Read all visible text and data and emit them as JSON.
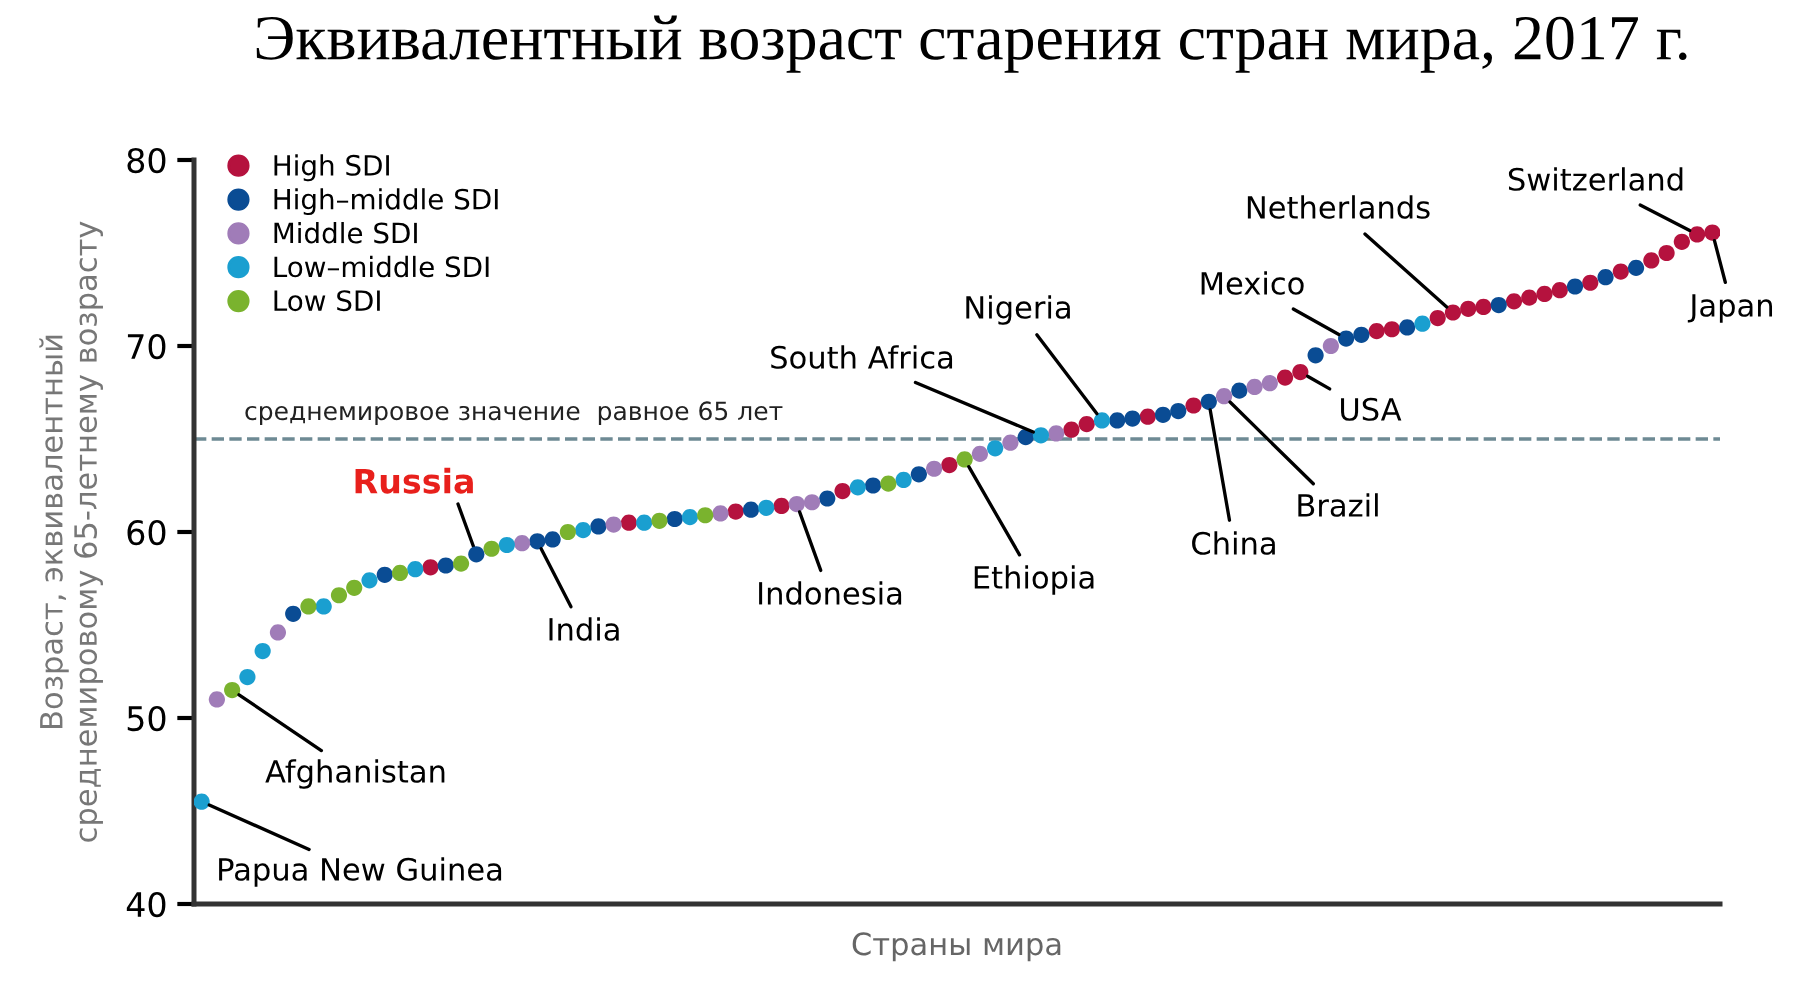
{
  "chart_data": {
    "type": "scatter",
    "title": "Эквивалентный возраст старения стран мира, 2017 г.",
    "xlabel": "Страны мира",
    "ylabel": "Возраст, эквивалентный\nсреднемировому 65-летнему возрасту",
    "categories": [
      null,
      null,
      null,
      null,
      null,
      null,
      null,
      null,
      null,
      null,
      null,
      null,
      null,
      null,
      null,
      null,
      null,
      null,
      null,
      null,
      null,
      null,
      null,
      null,
      null,
      null,
      null,
      null,
      null,
      null,
      null,
      null,
      null,
      null,
      null,
      null,
      null,
      null,
      null,
      null,
      null,
      null,
      null,
      null,
      null,
      null,
      null,
      null,
      null,
      null,
      null,
      null,
      null,
      null,
      null,
      null,
      null,
      null,
      null,
      null,
      null,
      null,
      null,
      null,
      null,
      null,
      null,
      null,
      null,
      null,
      null,
      null,
      null,
      null,
      null,
      null,
      null,
      null,
      null,
      null,
      null,
      null,
      null,
      null,
      null,
      null,
      null,
      null,
      null,
      null,
      null,
      null,
      null,
      null,
      null,
      null,
      null,
      null,
      null,
      null
    ],
    "series": [
      {
        "name": "High SDI",
        "color": "#b5123e",
        "values": [
          null,
          null,
          null,
          null,
          null,
          null,
          null,
          null,
          null,
          null,
          null,
          null,
          null,
          null,
          null,
          58.1,
          null,
          null,
          null,
          null,
          null,
          null,
          null,
          null,
          null,
          null,
          null,
          null,
          60.5,
          null,
          null,
          null,
          null,
          null,
          null,
          61.1,
          null,
          null,
          61.4,
          null,
          null,
          null,
          62.2,
          null,
          null,
          null,
          null,
          null,
          null,
          63.6,
          null,
          null,
          null,
          null,
          null,
          null,
          null,
          65.5,
          65.8,
          null,
          null,
          null,
          66.2,
          null,
          null,
          66.8,
          null,
          null,
          null,
          null,
          null,
          68.3,
          68.6,
          null,
          null,
          null,
          null,
          70.8,
          70.9,
          null,
          null,
          71.5,
          71.8,
          72.0,
          72.1,
          null,
          72.4,
          72.6,
          72.8,
          73.0,
          null,
          73.4,
          null,
          74.0,
          null,
          74.6,
          75.0,
          75.6,
          76.0,
          76.1
        ]
      },
      {
        "name": "High–middle SDI",
        "color": "#0a4c94",
        "values": [
          null,
          null,
          null,
          null,
          null,
          null,
          55.6,
          null,
          null,
          null,
          null,
          null,
          57.7,
          null,
          null,
          null,
          58.2,
          null,
          58.8,
          null,
          null,
          null,
          59.5,
          59.6,
          null,
          null,
          60.3,
          null,
          null,
          null,
          null,
          60.7,
          null,
          null,
          null,
          null,
          61.2,
          null,
          null,
          null,
          null,
          61.8,
          null,
          null,
          62.5,
          null,
          null,
          63.1,
          null,
          null,
          null,
          null,
          null,
          null,
          65.1,
          null,
          null,
          null,
          null,
          null,
          66.0,
          66.1,
          null,
          66.3,
          66.5,
          null,
          67.0,
          null,
          67.6,
          null,
          null,
          null,
          null,
          69.5,
          null,
          70.4,
          70.6,
          null,
          null,
          71.0,
          null,
          null,
          null,
          null,
          null,
          72.2,
          null,
          null,
          null,
          null,
          73.2,
          null,
          73.7,
          null,
          74.2,
          null,
          null,
          null,
          null,
          null
        ]
      },
      {
        "name": "Middle SDI",
        "color": "#a07cb8",
        "values": [
          null,
          51.0,
          null,
          null,
          null,
          54.6,
          null,
          null,
          null,
          null,
          null,
          null,
          null,
          null,
          null,
          null,
          null,
          null,
          null,
          null,
          null,
          59.4,
          null,
          null,
          null,
          null,
          null,
          60.4,
          null,
          null,
          null,
          null,
          null,
          null,
          61.0,
          null,
          null,
          null,
          null,
          61.5,
          61.6,
          null,
          null,
          null,
          null,
          null,
          null,
          null,
          63.4,
          null,
          null,
          64.2,
          null,
          64.8,
          null,
          null,
          65.3,
          null,
          null,
          null,
          null,
          null,
          null,
          null,
          null,
          null,
          null,
          67.3,
          null,
          67.8,
          68.0,
          null,
          null,
          null,
          70.0,
          null,
          null,
          null,
          null,
          null,
          null,
          null,
          null,
          null,
          null,
          null,
          null,
          null,
          null,
          null,
          null,
          null,
          null,
          null,
          null,
          null,
          null,
          null,
          null,
          null
        ]
      },
      {
        "name": "Low–middle SDI",
        "color": "#1a9fd0",
        "values": [
          45.5,
          null,
          null,
          52.2,
          53.6,
          null,
          null,
          null,
          56.0,
          null,
          null,
          57.4,
          null,
          null,
          58.0,
          null,
          null,
          null,
          null,
          null,
          59.3,
          null,
          null,
          null,
          null,
          60.1,
          null,
          null,
          null,
          60.5,
          null,
          null,
          60.8,
          null,
          null,
          null,
          null,
          61.3,
          null,
          null,
          null,
          null,
          null,
          62.4,
          null,
          null,
          62.8,
          null,
          null,
          null,
          null,
          null,
          64.5,
          null,
          null,
          65.2,
          null,
          null,
          null,
          66.0,
          null,
          null,
          null,
          null,
          null,
          null,
          null,
          null,
          null,
          null,
          null,
          null,
          null,
          null,
          null,
          null,
          null,
          null,
          null,
          null,
          71.2,
          null,
          null,
          null,
          null,
          null,
          null,
          null,
          null,
          null,
          null,
          null,
          null,
          null,
          null,
          null,
          null,
          null,
          null,
          null
        ]
      },
      {
        "name": "Low SDI",
        "color": "#7ab32e",
        "values": [
          null,
          null,
          51.5,
          null,
          null,
          null,
          null,
          56.0,
          null,
          56.6,
          57.0,
          null,
          null,
          57.8,
          null,
          null,
          null,
          58.3,
          null,
          59.1,
          null,
          null,
          null,
          null,
          60.0,
          null,
          null,
          null,
          null,
          null,
          60.6,
          null,
          null,
          60.9,
          null,
          null,
          null,
          null,
          null,
          null,
          null,
          null,
          null,
          null,
          null,
          62.6,
          null,
          null,
          null,
          null,
          63.9,
          null,
          null,
          null,
          null,
          null,
          null,
          null,
          null,
          null,
          null,
          null,
          null,
          null,
          null,
          null,
          null,
          null,
          null,
          null,
          null,
          null,
          null,
          null,
          null,
          null,
          null,
          null,
          null,
          null,
          null,
          null,
          null,
          null,
          null,
          null,
          null,
          null,
          null,
          null,
          null,
          null,
          null,
          null,
          null,
          null,
          null,
          null,
          null,
          null
        ]
      }
    ],
    "ylim": [
      40,
      80
    ],
    "yticks": [
      40,
      50,
      60,
      70,
      80
    ],
    "tick_labels": "y",
    "grid": false,
    "legend": "top left",
    "marker": "circle",
    "ref_lines": [
      {
        "axis": "y",
        "value": 65,
        "label": "среднемировое значение  равное 65 лет",
        "color": "#6e8a94",
        "line_style": "dashed"
      }
    ],
    "annotations": [
      "Papua New Guinea",
      "Afghanistan",
      "Russia",
      "India",
      "Indonesia",
      "Ethiopia",
      "South Africa",
      "Nigeria",
      "China",
      "Brazil",
      "USA",
      "Mexico",
      "Netherlands",
      "Switzerland",
      "Japan"
    ]
  }
}
